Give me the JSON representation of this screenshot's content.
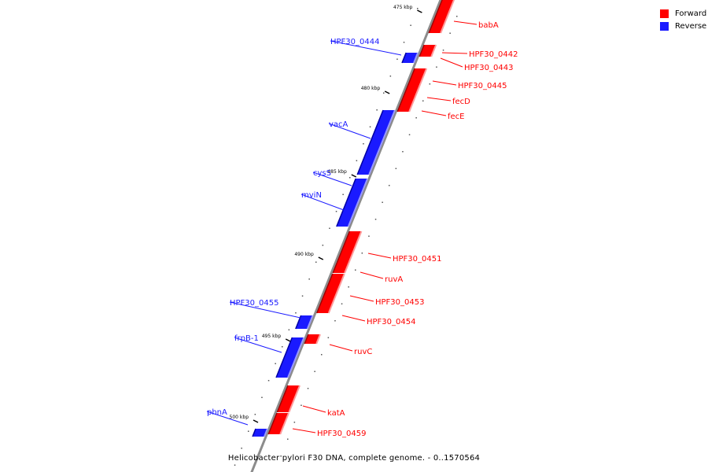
{
  "legend": {
    "forward_label": "Forward",
    "reverse_label": "Reverse",
    "forward_color": "#ff0000",
    "reverse_color": "#1a1aff"
  },
  "caption": "Helicobacter pylori F30 DNA, complete genome. - 0..1570564",
  "map": {
    "backbone_color": "#8c8c8c",
    "ticks": [
      "475 kbp",
      "480 kbp",
      "485 kbp",
      "490 kbp",
      "495 kbp",
      "500 kbp"
    ],
    "genes": [
      {
        "name": "babA",
        "strand": "forward"
      },
      {
        "name": "HPF30_0442",
        "strand": "forward"
      },
      {
        "name": "HPF30_0443",
        "strand": "forward"
      },
      {
        "name": "HPF30_0444",
        "strand": "reverse"
      },
      {
        "name": "HPF30_0445",
        "strand": "forward"
      },
      {
        "name": "fecD",
        "strand": "forward"
      },
      {
        "name": "fecE",
        "strand": "forward"
      },
      {
        "name": "vacA",
        "strand": "reverse"
      },
      {
        "name": "cysS",
        "strand": "reverse"
      },
      {
        "name": "mviN",
        "strand": "reverse"
      },
      {
        "name": "HPF30_0451",
        "strand": "forward"
      },
      {
        "name": "ruvA",
        "strand": "forward"
      },
      {
        "name": "HPF30_0453",
        "strand": "forward"
      },
      {
        "name": "HPF30_0454",
        "strand": "forward"
      },
      {
        "name": "HPF30_0455",
        "strand": "reverse"
      },
      {
        "name": "ruvC",
        "strand": "forward"
      },
      {
        "name": "frpB-1",
        "strand": "reverse"
      },
      {
        "name": "katA",
        "strand": "forward"
      },
      {
        "name": "HPF30_0459",
        "strand": "forward"
      },
      {
        "name": "phnA",
        "strand": "reverse"
      }
    ]
  }
}
